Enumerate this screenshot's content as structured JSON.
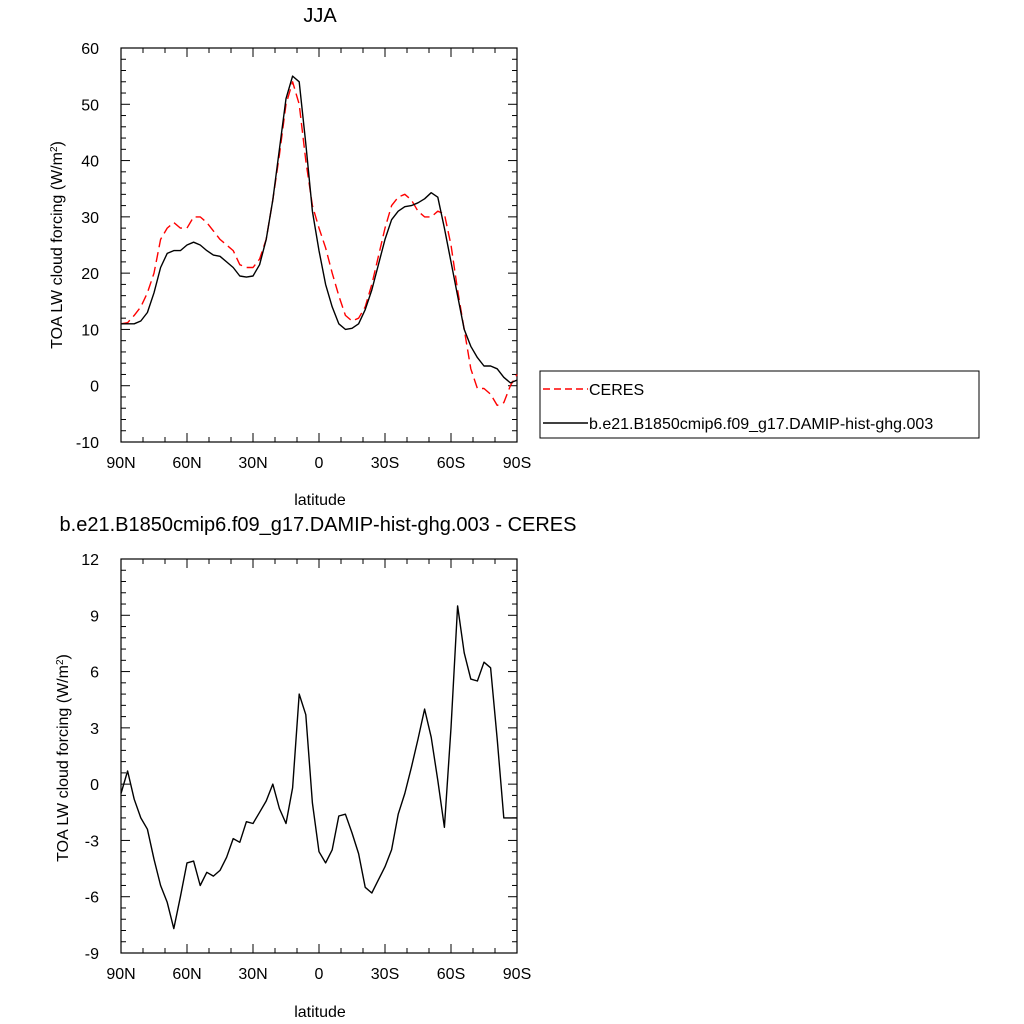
{
  "chart_data": [
    {
      "type": "line",
      "title": "JJA",
      "xlabel": "latitude",
      "ylabel": "TOA LW cloud forcing (W/m",
      "ylabel_sup": "2",
      "ylabel_end": ")",
      "xlim": [
        90,
        -90
      ],
      "ylim": [
        -10,
        60
      ],
      "xticks": [
        90,
        60,
        30,
        0,
        -30,
        -60,
        -90
      ],
      "xtick_labels": [
        "90N",
        "60N",
        "30N",
        "0",
        "30S",
        "60S",
        "90S"
      ],
      "yticks": [
        -10,
        0,
        10,
        20,
        30,
        40,
        50,
        60
      ],
      "ytick_labels": [
        "-10",
        "0",
        "10",
        "20",
        "30",
        "40",
        "50",
        "60"
      ],
      "legend_position": "right",
      "series": [
        {
          "name": "CERES",
          "color": "#ff0000",
          "dash": "dashed",
          "x": [
            90,
            87,
            84,
            81,
            78,
            75,
            72,
            69,
            66,
            63,
            60,
            57,
            54,
            51,
            48,
            45,
            42,
            39,
            36,
            33,
            30,
            27,
            24,
            21,
            18,
            15,
            12,
            9,
            6,
            3,
            0,
            -3,
            -6,
            -9,
            -12,
            -15,
            -18,
            -21,
            -24,
            -27,
            -30,
            -33,
            -36,
            -39,
            -42,
            -45,
            -48,
            -51,
            -54,
            -57,
            -60,
            -63,
            -66,
            -69,
            -72,
            -75,
            -78,
            -81,
            -84,
            -87,
            -90
          ],
          "y": [
            11,
            11.2,
            12.5,
            14,
            16.5,
            20,
            26,
            28,
            29,
            28,
            28,
            30,
            30,
            29,
            27.5,
            26,
            25,
            24,
            21.5,
            21,
            21,
            22.5,
            26,
            33,
            41,
            50,
            54,
            50,
            40,
            32,
            28,
            24.5,
            20,
            16,
            12.5,
            11.5,
            12,
            14,
            18,
            23,
            28,
            32,
            33.5,
            34,
            33,
            31,
            30,
            30,
            31,
            30.5,
            25,
            17,
            10,
            3,
            -0.5,
            -0.5,
            -1.5,
            -3.5,
            -3,
            0,
            2
          ]
        },
        {
          "name": "b.e21.B1850cmip6.f09_g17.DAMIP-hist-ghg.003",
          "color": "#000000",
          "dash": "solid",
          "x": [
            90,
            87,
            84,
            81,
            78,
            75,
            72,
            69,
            66,
            63,
            60,
            57,
            54,
            51,
            48,
            45,
            42,
            39,
            36,
            33,
            30,
            27,
            24,
            21,
            18,
            15,
            12,
            9,
            6,
            3,
            0,
            -3,
            -6,
            -9,
            -12,
            -15,
            -18,
            -21,
            -24,
            -27,
            -30,
            -33,
            -36,
            -39,
            -42,
            -45,
            -48,
            -51,
            -54,
            -57,
            -60,
            -63,
            -66,
            -69,
            -72,
            -75,
            -78,
            -81,
            -84,
            -87,
            -90
          ],
          "y": [
            11,
            11,
            11,
            11.5,
            13,
            16.5,
            21,
            23.5,
            24,
            24,
            25,
            25.5,
            25,
            24,
            23.2,
            23,
            22,
            21,
            19.5,
            19.3,
            19.5,
            21.5,
            26,
            33,
            42,
            51,
            55,
            54,
            43,
            31,
            24,
            18,
            14,
            11,
            10,
            10.2,
            11,
            13.5,
            17,
            21.5,
            26,
            29.5,
            31,
            31.8,
            32,
            32.5,
            33.2,
            34.3,
            33.5,
            28,
            22,
            16,
            10,
            7,
            5,
            3.5,
            3.5,
            3,
            1.5,
            0.5,
            1
          ]
        }
      ]
    },
    {
      "type": "line",
      "title": "b.e21.B1850cmip6.f09_g17.DAMIP-hist-ghg.003 - CERES",
      "xlabel": "latitude",
      "ylabel": "TOA LW cloud forcing (W/m",
      "ylabel_sup": "2",
      "ylabel_end": ")",
      "xlim": [
        90,
        -90
      ],
      "ylim": [
        -9,
        12
      ],
      "xticks": [
        90,
        60,
        30,
        0,
        -30,
        -60,
        -90
      ],
      "xtick_labels": [
        "90N",
        "60N",
        "30N",
        "0",
        "30S",
        "60S",
        "90S"
      ],
      "yticks": [
        -9,
        -6,
        -3,
        0,
        3,
        6,
        9,
        12
      ],
      "ytick_labels": [
        "-9",
        "-6",
        "-3",
        "0",
        "3",
        "6",
        "9",
        "12"
      ],
      "series": [
        {
          "color": "#000000",
          "dash": "solid",
          "x": [
            90,
            87,
            84,
            81,
            78,
            75,
            72,
            69,
            66,
            63,
            60,
            57,
            54,
            51,
            48,
            45,
            42,
            39,
            36,
            33,
            30,
            27,
            24,
            21,
            18,
            15,
            12,
            9,
            6,
            3,
            0,
            -3,
            -6,
            -9,
            -12,
            -15,
            -18,
            -21,
            -24,
            -27,
            -30,
            -33,
            -36,
            -39,
            -42,
            -45,
            -48,
            -51,
            -54,
            -57,
            -60,
            -63,
            -66,
            -69,
            -72,
            -75,
            -78,
            -81,
            -84,
            -87,
            -90
          ],
          "y": [
            -0.5,
            0.7,
            -0.8,
            -1.8,
            -2.4,
            -4,
            -5.4,
            -6.3,
            -7.7,
            -6,
            -4.2,
            -4.1,
            -5.4,
            -4.7,
            -4.9,
            -4.6,
            -3.9,
            -2.9,
            -3.1,
            -2,
            -2.1,
            -1.5,
            -0.9,
            0,
            -1.3,
            -2.1,
            -0.2,
            4.8,
            3.7,
            -1,
            -3.6,
            -4.2,
            -3.5,
            -1.7,
            -1.6,
            -2.6,
            -3.7,
            -5.5,
            -5.8,
            -5.1,
            -4.4,
            -3.5,
            -1.6,
            -0.5,
            0.9,
            2.4,
            4,
            2.5,
            0.2,
            -2.3,
            3,
            9.5,
            7,
            5.6,
            5.5,
            6.5,
            6.2,
            2.4,
            -1.8,
            -1.8,
            -1.8
          ]
        }
      ]
    }
  ]
}
